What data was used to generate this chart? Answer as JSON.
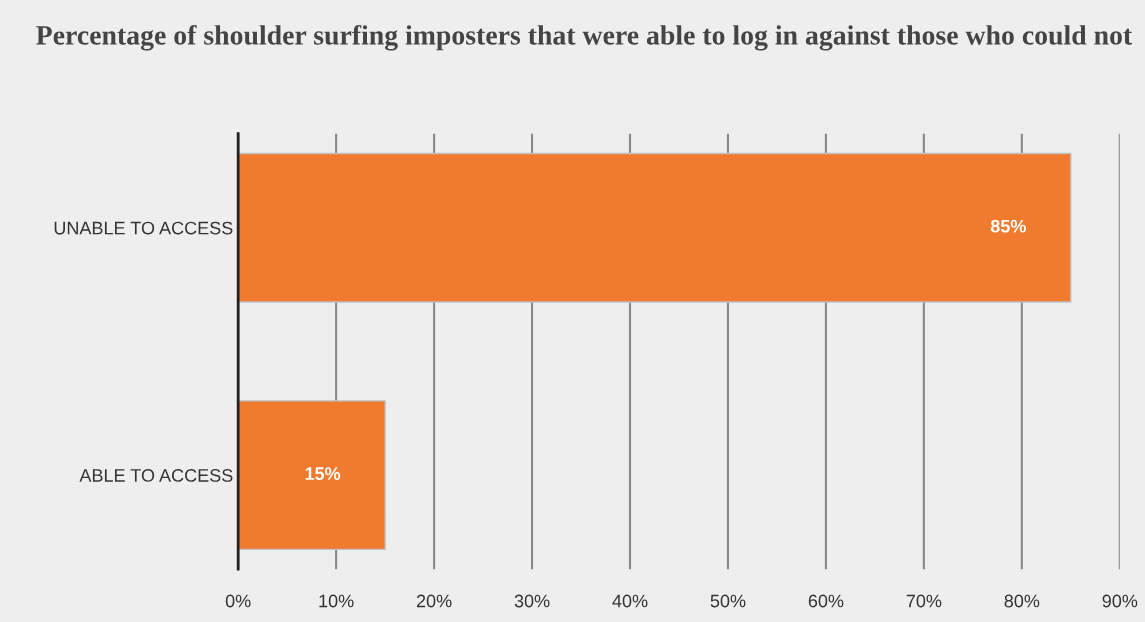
{
  "chart_data": {
    "type": "bar",
    "orientation": "horizontal",
    "title": "Percentage of shoulder surfing imposters that were able to log in against those who could not",
    "categories": [
      "UNABLE TO ACCESS",
      "ABLE TO ACCESS"
    ],
    "values": [
      85,
      15
    ],
    "color": "#f07a2e",
    "value_labels": [
      "85%",
      "15%"
    ],
    "xlim": [
      0,
      90
    ],
    "xticks": [
      {
        "value": 0,
        "label": "0%"
      },
      {
        "value": 10,
        "label": "10%"
      },
      {
        "value": 20,
        "label": "20%"
      },
      {
        "value": 30,
        "label": "30%"
      },
      {
        "value": 40,
        "label": "40%"
      },
      {
        "value": 50,
        "label": "50%"
      },
      {
        "value": 60,
        "label": "60%"
      },
      {
        "value": 70,
        "label": "70%"
      },
      {
        "value": 80,
        "label": "80%"
      },
      {
        "value": 90,
        "label": "90%"
      }
    ],
    "grid": "x",
    "legend": false
  }
}
